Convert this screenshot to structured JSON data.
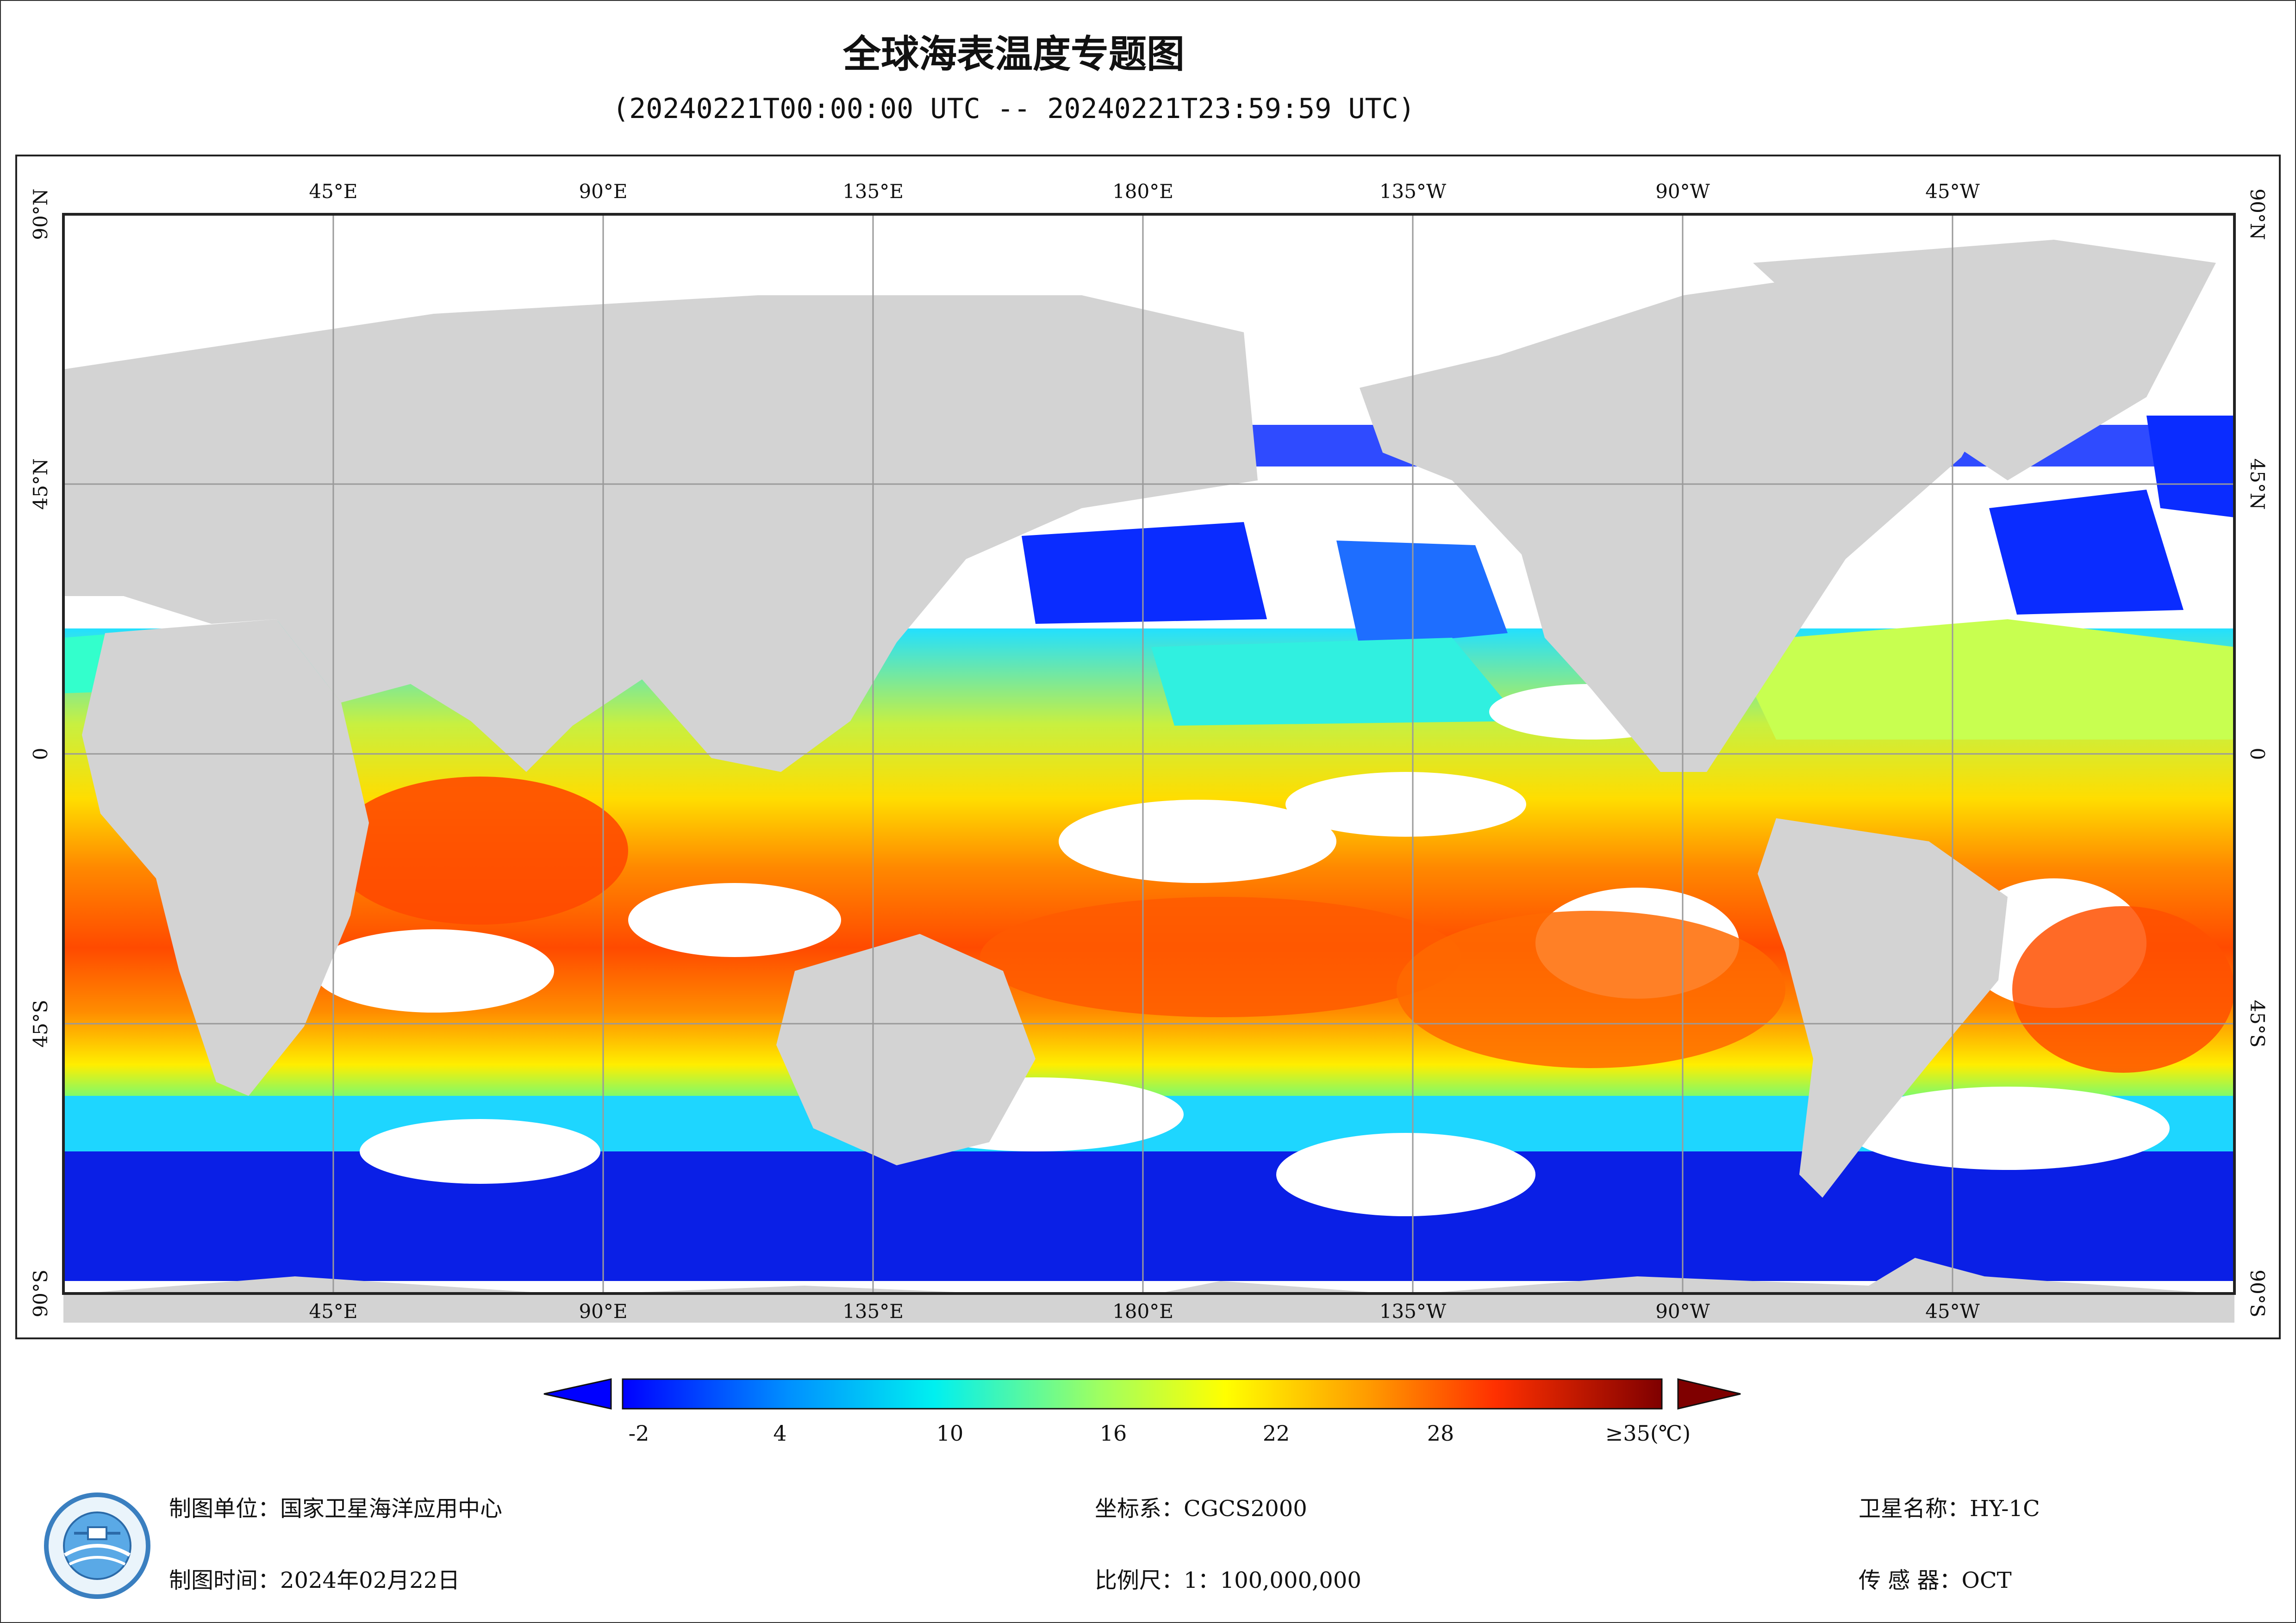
{
  "map": {
    "title": "全球海表温度专题图",
    "time_range": "(20240221T00:00:00 UTC -- 20240221T23:59:59 UTC)",
    "top_lon_labels": [
      "45°E",
      "90°E",
      "135°E",
      "180°E",
      "135°W",
      "90°W",
      "45°W"
    ],
    "bottom_lon_labels": [
      "45°E",
      "90°E",
      "135°E",
      "180°E",
      "135°W",
      "90°W",
      "45°W"
    ],
    "lat_labels": [
      "90°N",
      "45°N",
      "0",
      "45°S",
      "90°S"
    ],
    "layers": [
      "sea-surface-temperature",
      "land",
      "cloud-cover",
      "graticule"
    ],
    "land_color": "#d3d3d3",
    "cloud_color": "#ffffff"
  },
  "colorbar": {
    "ticks": [
      "-2",
      "4",
      "10",
      "16",
      "22",
      "28",
      "≥35(℃)"
    ],
    "range": [
      -2,
      35
    ],
    "unit": "℃",
    "colors": [
      "#0000ff",
      "#00aaff",
      "#00ffee",
      "#80ff80",
      "#ffff00",
      "#ff9900",
      "#ff3300",
      "#7f0000"
    ]
  },
  "footer": {
    "producer": "制图单位：国家卫星海洋应用中心",
    "produce_time": "制图时间：2024年02月22日",
    "coord_system": "坐标系：CGCS2000",
    "scale": "比例尺：1：100,000,000",
    "satellite": "卫星名称：HY-1C",
    "sensor": "传 感 器：OCT"
  },
  "logo": {
    "icon": "nsoas-logo-icon"
  }
}
